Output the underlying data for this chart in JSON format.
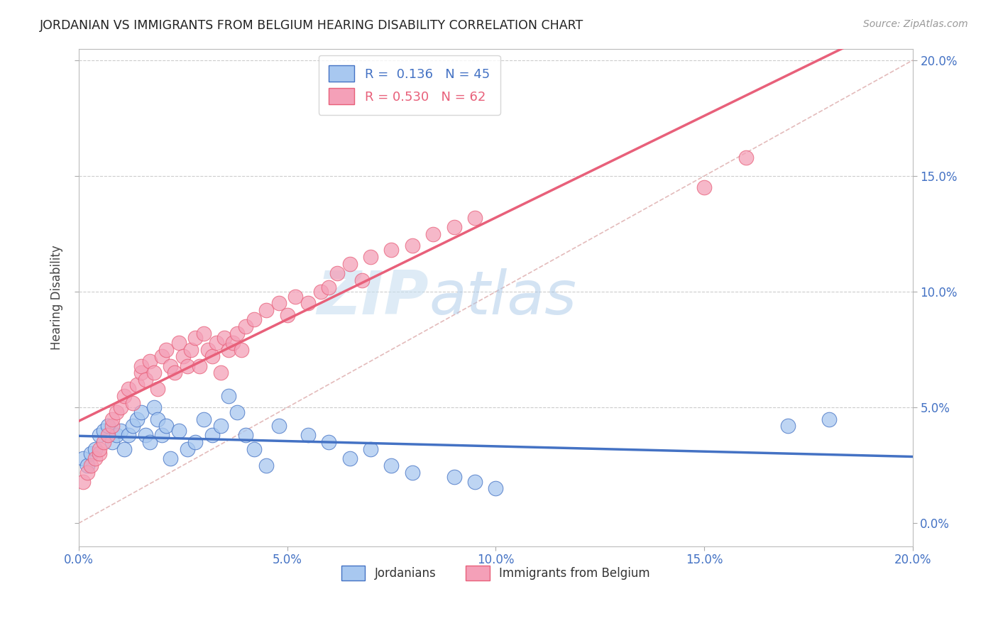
{
  "title": "JORDANIAN VS IMMIGRANTS FROM BELGIUM HEARING DISABILITY CORRELATION CHART",
  "source": "Source: ZipAtlas.com",
  "ylabel": "Hearing Disability",
  "xlim": [
    0.0,
    0.2
  ],
  "ylim": [
    -0.01,
    0.205
  ],
  "xtick_vals": [
    0.0,
    0.05,
    0.1,
    0.15,
    0.2
  ],
  "xtick_labels": [
    "0.0%",
    "5.0%",
    "10.0%",
    "15.0%",
    "20.0%"
  ],
  "ytick_vals": [
    0.0,
    0.05,
    0.1,
    0.15,
    0.2
  ],
  "right_ytick_labels": [
    "0.0%",
    "5.0%",
    "10.0%",
    "15.0%",
    "20.0%"
  ],
  "color_jordanian": "#a8c8f0",
  "color_belgium": "#f4a0b8",
  "color_line_jordanian": "#4472c4",
  "color_line_belgium": "#e8607a",
  "color_diag": "#ccaaaa",
  "watermark_zip": "ZIP",
  "watermark_atlas": "atlas",
  "jordanian_x": [
    0.001,
    0.002,
    0.003,
    0.004,
    0.005,
    0.006,
    0.007,
    0.008,
    0.009,
    0.01,
    0.011,
    0.012,
    0.013,
    0.014,
    0.015,
    0.016,
    0.017,
    0.018,
    0.019,
    0.02,
    0.021,
    0.022,
    0.024,
    0.026,
    0.028,
    0.03,
    0.032,
    0.034,
    0.036,
    0.038,
    0.04,
    0.042,
    0.045,
    0.048,
    0.055,
    0.06,
    0.065,
    0.07,
    0.075,
    0.08,
    0.09,
    0.095,
    0.1,
    0.17,
    0.18
  ],
  "jordanian_y": [
    0.028,
    0.025,
    0.03,
    0.032,
    0.038,
    0.04,
    0.042,
    0.035,
    0.038,
    0.04,
    0.032,
    0.038,
    0.042,
    0.045,
    0.048,
    0.038,
    0.035,
    0.05,
    0.045,
    0.038,
    0.042,
    0.028,
    0.04,
    0.032,
    0.035,
    0.045,
    0.038,
    0.042,
    0.055,
    0.048,
    0.038,
    0.032,
    0.025,
    0.042,
    0.038,
    0.035,
    0.028,
    0.032,
    0.025,
    0.022,
    0.02,
    0.018,
    0.015,
    0.042,
    0.045
  ],
  "belgium_x": [
    0.001,
    0.002,
    0.003,
    0.004,
    0.005,
    0.005,
    0.006,
    0.007,
    0.008,
    0.008,
    0.009,
    0.01,
    0.011,
    0.012,
    0.013,
    0.014,
    0.015,
    0.015,
    0.016,
    0.017,
    0.018,
    0.019,
    0.02,
    0.021,
    0.022,
    0.023,
    0.024,
    0.025,
    0.026,
    0.027,
    0.028,
    0.029,
    0.03,
    0.031,
    0.032,
    0.033,
    0.034,
    0.035,
    0.036,
    0.037,
    0.038,
    0.039,
    0.04,
    0.042,
    0.045,
    0.048,
    0.05,
    0.052,
    0.055,
    0.058,
    0.06,
    0.062,
    0.065,
    0.068,
    0.07,
    0.075,
    0.08,
    0.085,
    0.09,
    0.095,
    0.15,
    0.16
  ],
  "belgium_y": [
    0.018,
    0.022,
    0.025,
    0.028,
    0.03,
    0.032,
    0.035,
    0.038,
    0.042,
    0.045,
    0.048,
    0.05,
    0.055,
    0.058,
    0.052,
    0.06,
    0.065,
    0.068,
    0.062,
    0.07,
    0.065,
    0.058,
    0.072,
    0.075,
    0.068,
    0.065,
    0.078,
    0.072,
    0.068,
    0.075,
    0.08,
    0.068,
    0.082,
    0.075,
    0.072,
    0.078,
    0.065,
    0.08,
    0.075,
    0.078,
    0.082,
    0.075,
    0.085,
    0.088,
    0.092,
    0.095,
    0.09,
    0.098,
    0.095,
    0.1,
    0.102,
    0.108,
    0.112,
    0.105,
    0.115,
    0.118,
    0.12,
    0.125,
    0.128,
    0.132,
    0.145,
    0.158
  ]
}
